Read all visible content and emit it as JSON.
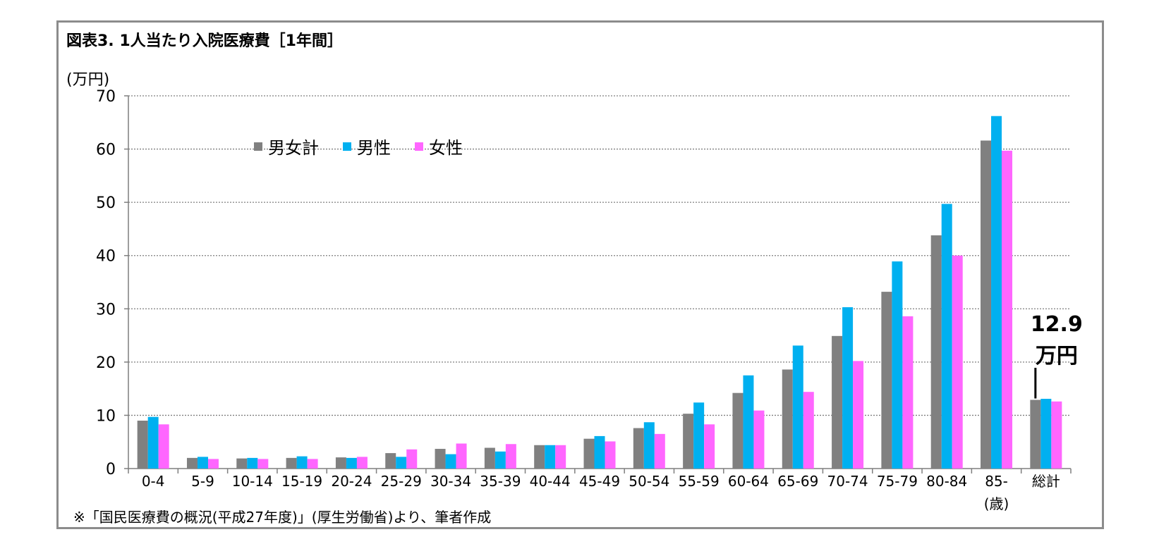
{
  "title": "図表3. 1人当たり入院医療費［1年間］",
  "source_note": "※「国民医療費の概況(平成27年度)」(厚生労働省)より、筆者作成",
  "colors": {
    "total": "#808080",
    "male": "#00b0f0",
    "female": "#ff66ff",
    "grid": "#7f7f7f",
    "axis": "#7f7f7f"
  },
  "chart_data": {
    "type": "bar",
    "ylabel": "(万円)",
    "ylim": [
      0,
      70
    ],
    "yticks": [
      0,
      10,
      20,
      30,
      40,
      50,
      60,
      70
    ],
    "grid": true,
    "legend_position": "top-left",
    "categories": [
      "0-4",
      "5-9",
      "10-14",
      "15-19",
      "20-24",
      "25-29",
      "30-34",
      "35-39",
      "40-44",
      "45-49",
      "50-54",
      "55-59",
      "60-64",
      "65-69",
      "70-74",
      "75-79",
      "80-84",
      "85-",
      "総計"
    ],
    "x_unit_label": "(歳)",
    "series": [
      {
        "name": "男女計",
        "color_key": "total",
        "values": [
          9.0,
          2.0,
          1.9,
          2.0,
          2.1,
          2.9,
          3.7,
          3.9,
          4.4,
          5.6,
          7.6,
          10.3,
          14.2,
          18.6,
          24.9,
          33.2,
          43.8,
          61.6,
          12.9
        ]
      },
      {
        "name": "男性",
        "color_key": "male",
        "values": [
          9.7,
          2.2,
          2.0,
          2.3,
          2.0,
          2.2,
          2.7,
          3.2,
          4.4,
          6.1,
          8.7,
          12.4,
          17.5,
          23.1,
          30.3,
          38.9,
          49.7,
          66.2,
          13.1
        ]
      },
      {
        "name": "女性",
        "color_key": "female",
        "values": [
          8.3,
          1.8,
          1.8,
          1.8,
          2.2,
          3.6,
          4.7,
          4.6,
          4.4,
          5.1,
          6.5,
          8.3,
          10.9,
          14.4,
          20.2,
          28.6,
          40.0,
          59.7,
          12.6
        ]
      }
    ],
    "annotation": {
      "line1": "12.9",
      "line2": "万円",
      "category": "総計"
    }
  }
}
